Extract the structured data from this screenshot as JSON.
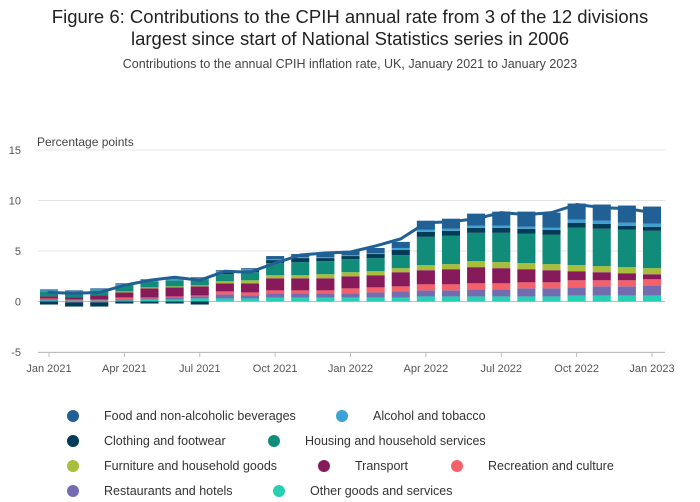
{
  "title_line1": "Figure 6: Contributions to the CPIH annual rate from 3 of the 12 divisions",
  "title_line2": "largest since start of National Statistics series in 2006",
  "subtitle": "Contributions to the annual CPIH inflation rate, UK, January 2021 to January 2023",
  "chart_data": {
    "type": "bar",
    "stacked": true,
    "ylabel": "Percentage points",
    "ylim": [
      -5,
      15
    ],
    "yticks": [
      -5,
      0,
      5,
      10,
      15
    ],
    "grid": true,
    "categories": [
      "Jan 2021",
      "Feb 2021",
      "Mar 2021",
      "Apr 2021",
      "May 2021",
      "Jun 2021",
      "Jul 2021",
      "Aug 2021",
      "Sep 2021",
      "Oct 2021",
      "Nov 2021",
      "Dec 2021",
      "Jan 2022",
      "Feb 2022",
      "Mar 2022",
      "Apr 2022",
      "May 2022",
      "Jun 2022",
      "Jul 2022",
      "Aug 2022",
      "Sep 2022",
      "Oct 2022",
      "Nov 2022",
      "Dec 2022",
      "Jan 2023"
    ],
    "xticks": [
      {
        "index": 0,
        "label": "Jan 2021"
      },
      {
        "index": 3,
        "label": "Apr 2021"
      },
      {
        "index": 6,
        "label": "Jul 2021"
      },
      {
        "index": 9,
        "label": "Oct 2021"
      },
      {
        "index": 12,
        "label": "Jan 2022"
      },
      {
        "index": 15,
        "label": "Apr 2022"
      },
      {
        "index": 18,
        "label": "Jul 2022"
      },
      {
        "index": 21,
        "label": "Oct 2022"
      },
      {
        "index": 24,
        "label": "Jan 2023"
      }
    ],
    "series": [
      {
        "name": "Other goods and services",
        "color": "#27d0b3",
        "values": [
          0.1,
          0.1,
          0.1,
          0.1,
          0.2,
          0.2,
          0.3,
          0.3,
          0.3,
          0.4,
          0.4,
          0.4,
          0.4,
          0.4,
          0.4,
          0.5,
          0.5,
          0.5,
          0.5,
          0.5,
          0.5,
          0.6,
          0.6,
          0.6,
          0.6
        ]
      },
      {
        "name": "Restaurants and hotels",
        "color": "#746cb1",
        "values": [
          0.1,
          -0.1,
          -0.1,
          0.1,
          0.1,
          0.2,
          0.2,
          0.4,
          0.3,
          0.4,
          0.4,
          0.4,
          0.4,
          0.5,
          0.6,
          0.6,
          0.6,
          0.7,
          0.7,
          0.8,
          0.8,
          0.8,
          0.9,
          0.9,
          1.0
        ]
      },
      {
        "name": "Recreation and culture",
        "color": "#f66068",
        "values": [
          0.1,
          0.1,
          0.1,
          0.2,
          0.1,
          0.1,
          0.1,
          0.3,
          0.3,
          0.3,
          0.3,
          0.3,
          0.5,
          0.5,
          0.5,
          0.6,
          0.6,
          0.6,
          0.6,
          0.6,
          0.6,
          0.7,
          0.6,
          0.6,
          0.6
        ]
      },
      {
        "name": "Transport",
        "color": "#871a5b",
        "values": [
          0.2,
          0.2,
          0.4,
          0.5,
          0.9,
          0.9,
          0.9,
          0.8,
          0.9,
          1.2,
          1.2,
          1.2,
          1.2,
          1.2,
          1.4,
          1.4,
          1.5,
          1.6,
          1.5,
          1.3,
          1.2,
          0.9,
          0.8,
          0.7,
          0.5
        ]
      },
      {
        "name": "Furniture and household goods",
        "color": "#a8bd3a",
        "values": [
          0.0,
          0.0,
          0.0,
          0.1,
          0.1,
          0.1,
          0.1,
          0.2,
          0.3,
          0.3,
          0.3,
          0.4,
          0.4,
          0.4,
          0.4,
          0.5,
          0.5,
          0.6,
          0.6,
          0.6,
          0.6,
          0.6,
          0.6,
          0.6,
          0.6
        ]
      },
      {
        "name": "Housing and household services",
        "color": "#118c7b",
        "values": [
          0.5,
          0.5,
          0.5,
          0.6,
          0.6,
          0.6,
          0.6,
          0.7,
          0.8,
          1.2,
          1.3,
          1.3,
          1.3,
          1.3,
          1.3,
          2.8,
          2.8,
          2.8,
          2.9,
          2.9,
          2.9,
          3.7,
          3.7,
          3.7,
          3.7
        ]
      },
      {
        "name": "Clothing and footwear",
        "color": "#003c57",
        "values": [
          -0.3,
          -0.4,
          -0.4,
          -0.2,
          -0.2,
          -0.2,
          -0.3,
          0.2,
          0.2,
          0.3,
          0.4,
          0.3,
          0.3,
          0.4,
          0.5,
          0.5,
          0.5,
          0.5,
          0.5,
          0.5,
          0.5,
          0.5,
          0.5,
          0.4,
          0.4
        ]
      },
      {
        "name": "Alcohol and tobacco",
        "color": "#3ca2d6",
        "values": [
          0.1,
          0.1,
          0.1,
          0.1,
          0.1,
          0.1,
          0.1,
          0.1,
          0.1,
          0.1,
          0.1,
          0.1,
          0.1,
          0.1,
          0.2,
          0.2,
          0.2,
          0.2,
          0.2,
          0.2,
          0.2,
          0.3,
          0.3,
          0.3,
          0.3
        ]
      },
      {
        "name": "Food and non-alcoholic beverages",
        "color": "#206095",
        "values": [
          0.1,
          0.1,
          0.1,
          0.1,
          0.1,
          0.1,
          0.1,
          0.1,
          0.1,
          0.3,
          0.3,
          0.3,
          0.4,
          0.5,
          0.6,
          0.9,
          1.0,
          1.2,
          1.4,
          1.5,
          1.5,
          1.6,
          1.6,
          1.7,
          1.7
        ]
      }
    ],
    "line": {
      "name": "CPIH annual rate",
      "color": "#206095",
      "values": [
        0.9,
        0.8,
        0.9,
        1.6,
        2.1,
        2.4,
        2.1,
        3.0,
        2.9,
        3.8,
        4.6,
        4.8,
        4.9,
        5.5,
        6.2,
        7.8,
        7.9,
        8.2,
        8.8,
        8.6,
        8.8,
        9.6,
        9.3,
        9.2,
        8.8
      ]
    }
  },
  "legend": [
    {
      "label": "Food and non-alcoholic beverages",
      "color": "#206095"
    },
    {
      "label": "Alcohol and tobacco",
      "color": "#3ca2d6"
    },
    {
      "label": "Clothing and footwear",
      "color": "#003c57"
    },
    {
      "label": "Housing and household services",
      "color": "#118c7b"
    },
    {
      "label": "Furniture and household goods",
      "color": "#a8bd3a"
    },
    {
      "label": "Transport",
      "color": "#871a5b"
    },
    {
      "label": "Recreation and culture",
      "color": "#f66068"
    },
    {
      "label": "Restaurants and hotels",
      "color": "#746cb1"
    },
    {
      "label": "Other goods and services",
      "color": "#27d0b3"
    }
  ]
}
